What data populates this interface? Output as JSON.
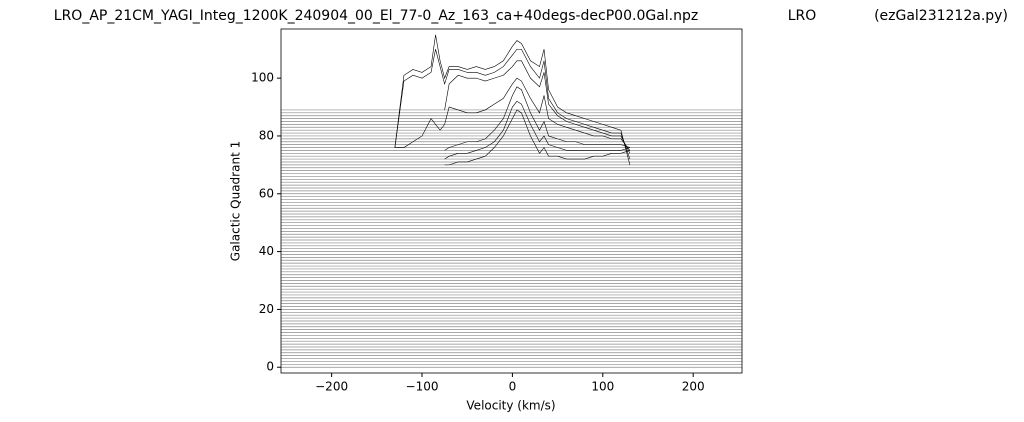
{
  "chart_data": {
    "type": "line",
    "titles": [
      "LRO_AP_21CM_YAGI_Integ_1200K_240904_00_El_77-0_Az_163_ca+40degs-decP00.0Gal.npz",
      "LRO",
      "(ezGal231212a.py)"
    ],
    "xlabel": "Velocity (km/s)",
    "ylabel": "Galactic Quadrant 1",
    "xlim": [
      -256,
      254
    ],
    "ylim": [
      -2,
      117
    ],
    "xticks": [
      {
        "value": -200,
        "label": "−200"
      },
      {
        "value": -100,
        "label": "−100"
      },
      0,
      100,
      200
    ],
    "yticks": [
      0,
      20,
      40,
      60,
      80,
      100
    ],
    "baseline_color": "#8a8a8a",
    "baselines": [
      0,
      1,
      2,
      3,
      4,
      5,
      6,
      7,
      8,
      9,
      10,
      11,
      12,
      13,
      14,
      15,
      16,
      17,
      18,
      19,
      20,
      21,
      22,
      23,
      24,
      25,
      26,
      27,
      28,
      29,
      30,
      31,
      32,
      33,
      34,
      35,
      36,
      37,
      38,
      39,
      40,
      41,
      42,
      43,
      44,
      45,
      46,
      47,
      48,
      49,
      50,
      51,
      52,
      53,
      54,
      55,
      56,
      57,
      58,
      59,
      60,
      61,
      62,
      63,
      64,
      65,
      66,
      67,
      68,
      69,
      70,
      71,
      72,
      73,
      74,
      75,
      76,
      77,
      78,
      79,
      80,
      81,
      82,
      83,
      84,
      85,
      86,
      87,
      88,
      89
    ],
    "x": [
      -130,
      -120,
      -110,
      -100,
      -90,
      -85,
      -80,
      -75,
      -70,
      -60,
      -50,
      -40,
      -30,
      -20,
      -10,
      0,
      5,
      10,
      20,
      30,
      35,
      40,
      50,
      60,
      70,
      80,
      90,
      100,
      110,
      120,
      130
    ],
    "series": [
      {
        "color": "#000000",
        "values": [
          76,
          101,
          103,
          102,
          104,
          115,
          106,
          100,
          104,
          104,
          103,
          104,
          103,
          104,
          106,
          111,
          113,
          112,
          106,
          104,
          110,
          96,
          90,
          88,
          87,
          86,
          85,
          84,
          83,
          82,
          70
        ]
      },
      {
        "color": "#000000",
        "values": [
          76,
          99,
          101,
          100,
          102,
          110,
          104,
          98,
          103,
          103,
          102,
          102,
          101,
          102,
          104,
          108,
          110,
          110,
          104,
          100,
          106,
          93,
          88,
          86,
          85,
          84,
          83,
          82,
          81,
          81,
          72
        ]
      },
      {
        "color": "#000000",
        "values": [
          null,
          null,
          null,
          null,
          null,
          null,
          null,
          89,
          98,
          101,
          100,
          100,
          99,
          100,
          101,
          104,
          106,
          106,
          100,
          97,
          102,
          91,
          87,
          85,
          84,
          83,
          82,
          81,
          80,
          80,
          74
        ]
      },
      {
        "color": "#000000",
        "values": [
          76,
          76,
          78,
          80,
          86,
          84,
          82,
          84,
          90,
          89,
          88,
          88,
          89,
          91,
          93,
          98,
          100,
          99,
          93,
          88,
          94,
          86,
          84,
          83,
          82,
          81,
          80,
          80,
          79,
          79,
          75
        ]
      },
      {
        "color": "#000000",
        "values": [
          null,
          null,
          null,
          null,
          null,
          null,
          null,
          75,
          76,
          77,
          78,
          78,
          79,
          82,
          86,
          94,
          97,
          96,
          88,
          82,
          85,
          80,
          79,
          78,
          78,
          77,
          77,
          77,
          77,
          77,
          76
        ]
      },
      {
        "color": "#000000",
        "values": [
          null,
          null,
          null,
          null,
          null,
          null,
          null,
          72,
          73,
          74,
          74,
          75,
          76,
          78,
          82,
          90,
          92,
          91,
          84,
          78,
          80,
          77,
          76,
          75,
          75,
          75,
          75,
          75,
          75,
          75,
          76
        ]
      },
      {
        "color": "#000000",
        "values": [
          null,
          null,
          null,
          null,
          null,
          null,
          null,
          70,
          70,
          71,
          71,
          72,
          73,
          76,
          80,
          86,
          89,
          88,
          80,
          74,
          76,
          73,
          73,
          72,
          72,
          72,
          73,
          73,
          74,
          74,
          75
        ]
      }
    ]
  }
}
